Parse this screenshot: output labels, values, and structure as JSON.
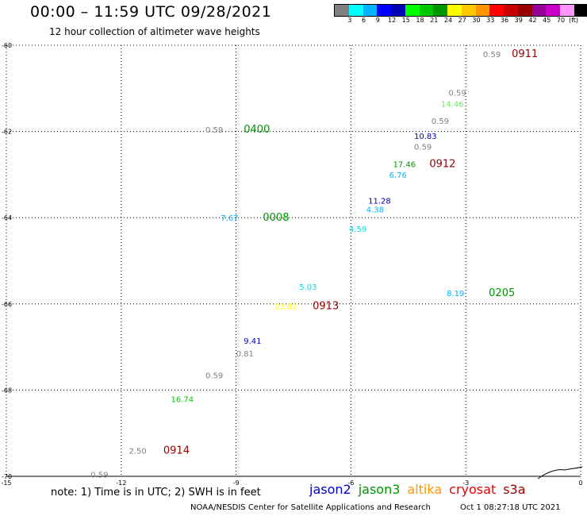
{
  "header": {
    "title": "00:00 – 11:59 UTC 09/28/2021",
    "subtitle": "12 hour collection of altimeter wave heights"
  },
  "legend": {
    "colors": [
      "#808080",
      "#00ffff",
      "#00b4ff",
      "#0000ff",
      "#0000b4",
      "#00ff00",
      "#00c800",
      "#009600",
      "#ffff00",
      "#ffc800",
      "#ff9600",
      "#ff0000",
      "#c80000",
      "#960000",
      "#960096",
      "#c800c8",
      "#ff96ff",
      "#000000"
    ],
    "ticks": [
      "3",
      "6",
      "9",
      "12",
      "15",
      "18",
      "21",
      "24",
      "27",
      "30",
      "33",
      "36",
      "39",
      "42",
      "45",
      "70"
    ],
    "unit": "(ft)"
  },
  "map": {
    "lon_range": [
      -15,
      0
    ],
    "lat_range": [
      -70,
      -60
    ],
    "x_ticks": [
      "-15",
      "-12",
      "-9",
      "-6",
      "-3",
      "0"
    ],
    "y_ticks": [
      "-60",
      "-62",
      "-64",
      "-66",
      "-68",
      "-70"
    ],
    "grid": true
  },
  "readings": [
    {
      "text": "0.59",
      "color": "#808080",
      "lon": -2.55,
      "lat": -60.2
    },
    {
      "text": "0911",
      "color": "#960000",
      "lon": -1.8,
      "lat": -60.2,
      "time": true
    },
    {
      "text": "0.59",
      "color": "#808080",
      "lon": -3.45,
      "lat": -61.1
    },
    {
      "text": "14.46",
      "color": "#66ee66",
      "lon": -3.65,
      "lat": -61.35
    },
    {
      "text": "0.59",
      "color": "#808080",
      "lon": -3.9,
      "lat": -61.75
    },
    {
      "text": "10.83",
      "color": "#0000b4",
      "lon": -4.35,
      "lat": -62.1
    },
    {
      "text": "0.59",
      "color": "#808080",
      "lon": -4.35,
      "lat": -62.35
    },
    {
      "text": "17.46",
      "color": "#009600",
      "lon": -4.9,
      "lat": -62.75
    },
    {
      "text": "0912",
      "color": "#960000",
      "lon": -3.95,
      "lat": -62.75,
      "time": true
    },
    {
      "text": "6.76",
      "color": "#00b4ff",
      "lon": -5.0,
      "lat": -63.0
    },
    {
      "text": "0.59",
      "color": "#808080",
      "lon": -9.8,
      "lat": -61.95
    },
    {
      "text": "0400",
      "color": "#009600",
      "lon": -8.8,
      "lat": -61.95,
      "time": true
    },
    {
      "text": "11.28",
      "color": "#0000b4",
      "lon": -5.55,
      "lat": -63.6
    },
    {
      "text": "4.38",
      "color": "#00b4ff",
      "lon": -5.6,
      "lat": -63.8
    },
    {
      "text": "7.67",
      "color": "#00b4ff",
      "lon": -9.4,
      "lat": -64.0
    },
    {
      "text": "0008",
      "color": "#009600",
      "lon": -8.3,
      "lat": -64.0,
      "time": true
    },
    {
      "text": "4.59",
      "color": "#00dddd",
      "lon": -6.05,
      "lat": -64.25
    },
    {
      "text": "5.03",
      "color": "#00dddd",
      "lon": -7.35,
      "lat": -65.6
    },
    {
      "text": "8.19",
      "color": "#00b4ff",
      "lon": -3.5,
      "lat": -65.75
    },
    {
      "text": "0205",
      "color": "#009600",
      "lon": -2.4,
      "lat": -65.75,
      "time": true
    },
    {
      "text": "23.82",
      "color": "#ffff00",
      "lon": -8.0,
      "lat": -66.05
    },
    {
      "text": "0913",
      "color": "#960000",
      "lon": -7.0,
      "lat": -66.05,
      "time": true
    },
    {
      "text": "9.41",
      "color": "#0000b4",
      "lon": -8.8,
      "lat": -66.85
    },
    {
      "text": "0.81",
      "color": "#808080",
      "lon": -9.0,
      "lat": -67.15
    },
    {
      "text": "0.59",
      "color": "#808080",
      "lon": -9.8,
      "lat": -67.65
    },
    {
      "text": "16.74",
      "color": "#00c800",
      "lon": -10.7,
      "lat": -68.2
    },
    {
      "text": "2.50",
      "color": "#808080",
      "lon": -11.8,
      "lat": -69.4
    },
    {
      "text": "0914",
      "color": "#960000",
      "lon": -10.9,
      "lat": -69.4,
      "time": true
    },
    {
      "text": "0.59",
      "color": "#808080",
      "lon": -12.8,
      "lat": -69.95
    }
  ],
  "footer": {
    "note": "note: 1) Time is in UTC; 2) SWH is in feet",
    "satellites": [
      {
        "name": "jason2",
        "color": "#0000c8"
      },
      {
        "name": "jason3",
        "color": "#009600"
      },
      {
        "name": "altika",
        "color": "#ff9600"
      },
      {
        "name": "cryosat",
        "color": "#e60000"
      },
      {
        "name": "s3a",
        "color": "#960000"
      }
    ],
    "credit": "NOAA/NESDIS Center for Satellite Applications and Research",
    "timestamp": "Oct  1 08:27:18 UTC 2021"
  }
}
